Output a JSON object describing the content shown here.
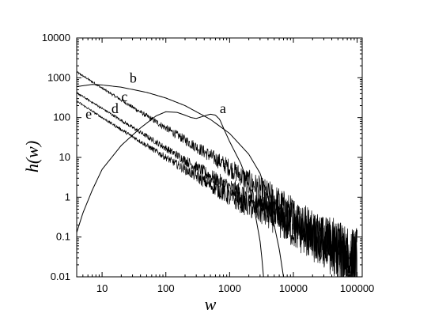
{
  "chart_data": {
    "type": "line",
    "xlabel": "w",
    "ylabel": "h(w)",
    "x_scale": "log",
    "y_scale": "log",
    "xlim": [
      4,
      120000
    ],
    "ylim": [
      0.01,
      10000
    ],
    "grid": false,
    "legend": "none",
    "x_ticks": [
      {
        "value": 10,
        "label": "10"
      },
      {
        "value": 100,
        "label": "100"
      },
      {
        "value": 1000,
        "label": "1000"
      },
      {
        "value": 10000,
        "label": "10000"
      },
      {
        "value": 100000,
        "label": "100000"
      }
    ],
    "y_ticks": [
      {
        "value": 0.01,
        "label": "0.01"
      },
      {
        "value": 0.1,
        "label": "0.1"
      },
      {
        "value": 1,
        "label": "1"
      },
      {
        "value": 10,
        "label": "10"
      },
      {
        "value": 100,
        "label": "100"
      },
      {
        "value": 1000,
        "label": "1000"
      },
      {
        "value": 10000,
        "label": "10000"
      }
    ],
    "series": [
      {
        "name": "a",
        "label_at": [
          700,
          130
        ],
        "noise": 0,
        "points": [
          [
            4,
            0.13
          ],
          [
            5,
            0.4
          ],
          [
            7,
            1.5
          ],
          [
            10,
            5
          ],
          [
            20,
            20
          ],
          [
            40,
            55
          ],
          [
            70,
            110
          ],
          [
            100,
            140
          ],
          [
            150,
            135
          ],
          [
            200,
            115
          ],
          [
            250,
            100
          ],
          [
            300,
            95
          ],
          [
            400,
            110
          ],
          [
            500,
            122
          ],
          [
            600,
            115
          ],
          [
            700,
            90
          ],
          [
            800,
            55
          ],
          [
            1000,
            25
          ],
          [
            1500,
            7
          ],
          [
            2000,
            2
          ],
          [
            2500,
            0.4
          ],
          [
            3000,
            0.08
          ],
          [
            3200,
            0.03
          ],
          [
            3400,
            0.01
          ]
        ]
      },
      {
        "name": "b",
        "label_at": [
          27,
          760
        ],
        "noise": 0,
        "points": [
          [
            4,
            600
          ],
          [
            7,
            680
          ],
          [
            10,
            660
          ],
          [
            20,
            580
          ],
          [
            50,
            430
          ],
          [
            100,
            310
          ],
          [
            200,
            200
          ],
          [
            500,
            90
          ],
          [
            1000,
            40
          ],
          [
            2000,
            12
          ],
          [
            3000,
            4
          ],
          [
            4000,
            1
          ],
          [
            5000,
            0.2
          ],
          [
            6000,
            0.05
          ],
          [
            7000,
            0.01
          ]
        ]
      },
      {
        "name": "c",
        "label_at": [
          20,
          260
        ],
        "noise": 0.05,
        "points": [
          [
            4,
            1400
          ],
          [
            10,
            550
          ],
          [
            100,
            55
          ],
          [
            1000,
            5.5
          ],
          [
            5000,
            0.9
          ],
          [
            10000,
            0.35
          ],
          [
            30000,
            0.1
          ],
          [
            100000,
            0.025
          ]
        ]
      },
      {
        "name": "d",
        "label_at": [
          14,
          130
        ],
        "noise": 0.05,
        "points": [
          [
            4,
            420
          ],
          [
            10,
            170
          ],
          [
            100,
            17
          ],
          [
            1000,
            1.7
          ],
          [
            5000,
            0.5
          ],
          [
            10000,
            0.25
          ],
          [
            30000,
            0.08
          ],
          [
            100000,
            0.025
          ]
        ]
      },
      {
        "name": "e",
        "label_at": [
          5.5,
          95
        ],
        "noise": 0.05,
        "points": [
          [
            4,
            260
          ],
          [
            10,
            100
          ],
          [
            100,
            10
          ],
          [
            1000,
            1.0
          ],
          [
            5000,
            0.3
          ],
          [
            10000,
            0.15
          ],
          [
            30000,
            0.06
          ],
          [
            100000,
            0.025
          ]
        ]
      }
    ]
  }
}
